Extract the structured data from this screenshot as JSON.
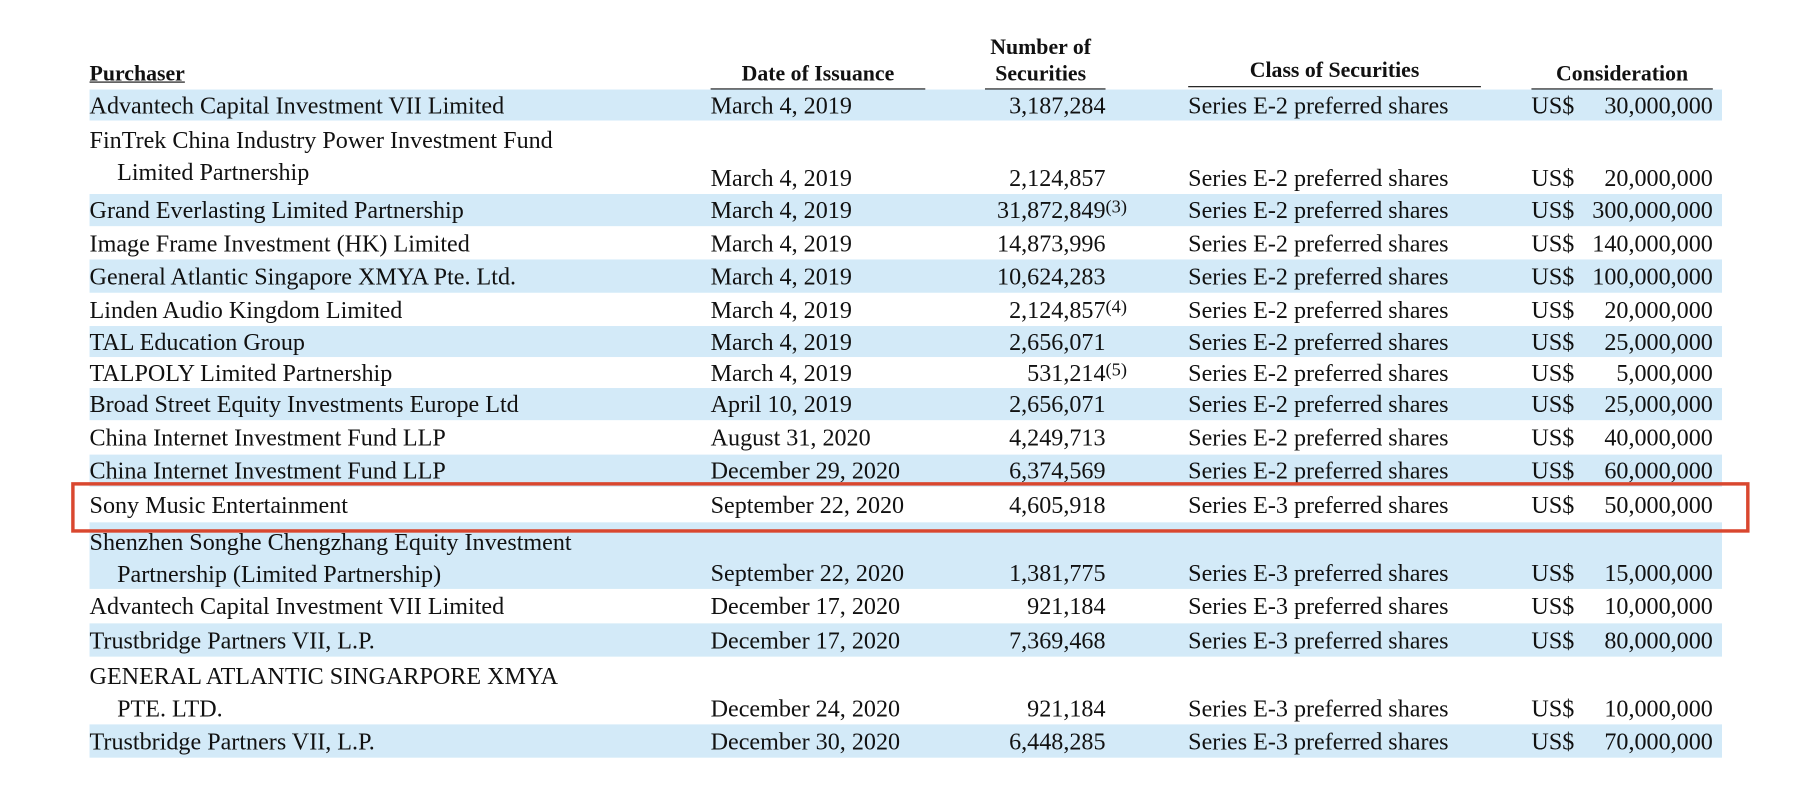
{
  "header": {
    "purchaser": "Purchaser",
    "date": "Date of Issuance",
    "number": [
      "Number of",
      "Securities"
    ],
    "class": "Class of Securities",
    "consideration": "Consideration"
  },
  "rows": [
    {
      "purchaser": [
        "Advantech Capital Investment VII Limited"
      ],
      "date": "March 4, 2019",
      "number": "3,187,284",
      "class": "Series E-2 preferred shares",
      "currency": "US$",
      "amount": "30,000,000"
    },
    {
      "purchaser": [
        "FinTrek China Industry Power Investment Fund",
        "Limited Partnership"
      ],
      "date": "March 4, 2019",
      "number": "2,124,857",
      "class": "Series E-2 preferred shares",
      "currency": "US$",
      "amount": "20,000,000"
    },
    {
      "purchaser": [
        "Grand Everlasting Limited Partnership"
      ],
      "date": "March 4, 2019",
      "number": "31,872,849",
      "note": "(3)",
      "class": "Series E-2 preferred shares",
      "currency": "US$",
      "amount": "300,000,000"
    },
    {
      "purchaser": [
        "Image Frame Investment (HK) Limited"
      ],
      "date": "March 4, 2019",
      "number": "14,873,996",
      "class": "Series E-2 preferred shares",
      "currency": "US$",
      "amount": "140,000,000"
    },
    {
      "purchaser": [
        "General Atlantic Singapore XMYA Pte. Ltd."
      ],
      "date": "March 4, 2019",
      "number": "10,624,283",
      "class": "Series E-2 preferred shares",
      "currency": "US$",
      "amount": "100,000,000"
    },
    {
      "purchaser": [
        "Linden Audio Kingdom Limited"
      ],
      "date": "March 4, 2019",
      "number": "2,124,857",
      "note": "(4)",
      "class": "Series E-2 preferred shares",
      "currency": "US$",
      "amount": "20,000,000"
    },
    {
      "purchaser": [
        "TAL Education Group"
      ],
      "date": "March 4, 2019",
      "number": "2,656,071",
      "class": "Series E-2 preferred shares",
      "currency": "US$",
      "amount": "25,000,000"
    },
    {
      "purchaser": [
        "TALPOLY Limited Partnership"
      ],
      "date": "March 4, 2019",
      "number": "531,214",
      "note": "(5)",
      "class": "Series E-2 preferred shares",
      "currency": "US$",
      "amount": "5,000,000"
    },
    {
      "purchaser": [
        "Broad Street Equity Investments Europe Ltd"
      ],
      "date": "April 10, 2019",
      "number": "2,656,071",
      "class": "Series E-2 preferred shares",
      "currency": "US$",
      "amount": "25,000,000"
    },
    {
      "purchaser": [
        "China Internet Investment Fund LLP"
      ],
      "date": "August 31, 2020",
      "number": "4,249,713",
      "class": "Series E-2 preferred shares",
      "currency": "US$",
      "amount": "40,000,000"
    },
    {
      "purchaser": [
        "China Internet Investment Fund LLP"
      ],
      "date": "December 29, 2020",
      "number": "6,374,569",
      "class": "Series E-2 preferred shares",
      "currency": "US$",
      "amount": "60,000,000"
    },
    {
      "purchaser": [
        "Sony Music Entertainment"
      ],
      "date": "September 22, 2020",
      "number": "4,605,918",
      "class": "Series E-3 preferred shares",
      "currency": "US$",
      "amount": "50,000,000"
    },
    {
      "purchaser": [
        "Shenzhen Songhe Chengzhang Equity Investment",
        "Partnership (Limited Partnership)"
      ],
      "date": "September 22, 2020",
      "number": "1,381,775",
      "class": "Series E-3 preferred shares",
      "currency": "US$",
      "amount": "15,000,000"
    },
    {
      "purchaser": [
        "Advantech Capital Investment VII Limited"
      ],
      "date": "December 17, 2020",
      "number": "921,184",
      "class": "Series E-3 preferred shares",
      "currency": "US$",
      "amount": "10,000,000"
    },
    {
      "purchaser": [
        "Trustbridge Partners VII, L.P."
      ],
      "date": "December 17, 2020",
      "number": "7,369,468",
      "class": "Series E-3 preferred shares",
      "currency": "US$",
      "amount": "80,000,000"
    },
    {
      "purchaser": [
        "GENERAL ATLANTIC SINGARPORE XMYA",
        "PTE. LTD."
      ],
      "date": "December 24, 2020",
      "number": "921,184",
      "class": "Series E-3 preferred shares",
      "currency": "US$",
      "amount": "10,000,000"
    },
    {
      "purchaser": [
        "Trustbridge Partners VII, L.P."
      ],
      "date": "December 30, 2020",
      "number": "6,448,285",
      "class": "Series E-3 preferred shares",
      "currency": "US$",
      "amount": "70,000,000"
    }
  ]
}
